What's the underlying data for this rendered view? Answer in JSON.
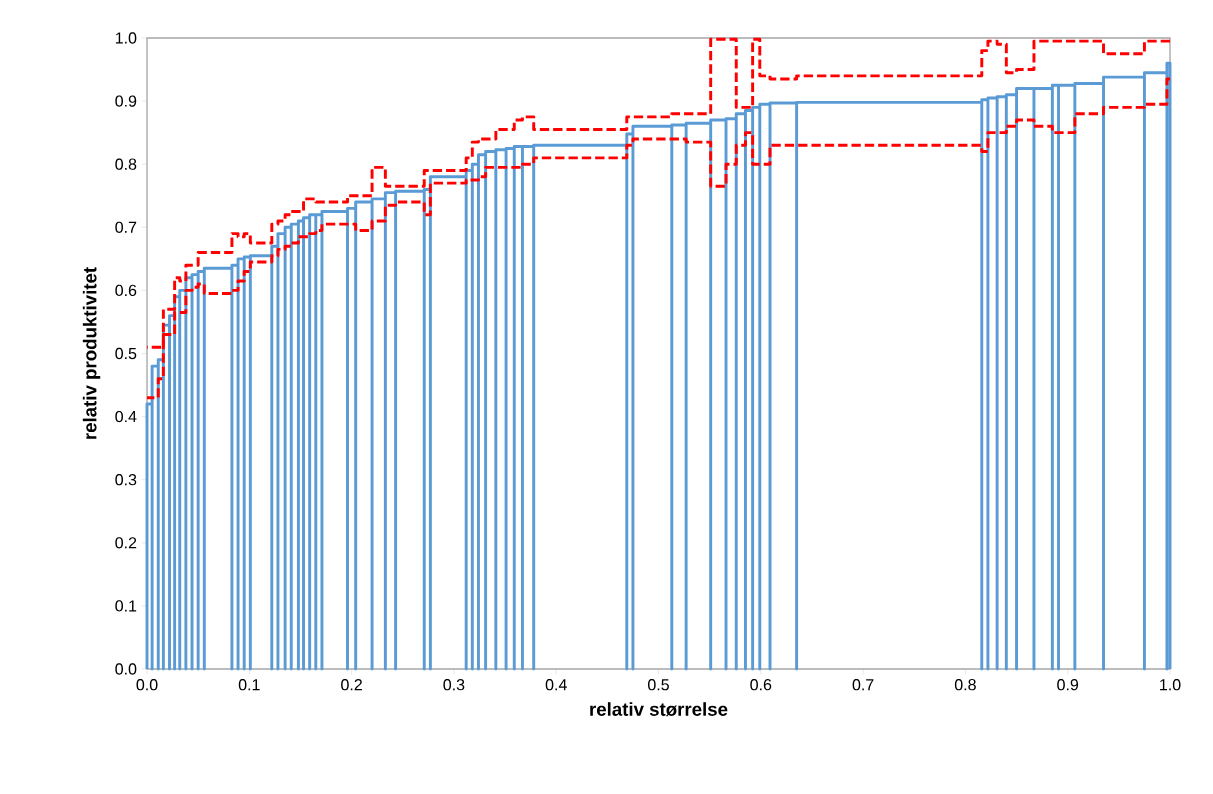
{
  "chart_data": {
    "type": "step",
    "xlabel": "relativ størrelse",
    "ylabel": "relativ produktivitet",
    "xlim": [
      0,
      1
    ],
    "ylim": [
      0,
      1
    ],
    "xticks": [
      {
        "value": 0,
        "label": "0.0"
      },
      {
        "value": 0.1,
        "label": "0.1"
      },
      {
        "value": 0.2,
        "label": "0.2"
      },
      {
        "value": 0.3,
        "label": "0.3"
      },
      {
        "value": 0.4,
        "label": "0.4"
      },
      {
        "value": 0.5,
        "label": "0.5"
      },
      {
        "value": 0.6,
        "label": "0.6"
      },
      {
        "value": 0.7,
        "label": "0.7"
      },
      {
        "value": 0.8,
        "label": "0.8"
      },
      {
        "value": 0.9,
        "label": "0.9"
      },
      {
        "value": 1,
        "label": "1.0"
      }
    ],
    "yticks": [
      {
        "value": 0,
        "label": "0.0"
      },
      {
        "value": 0.1,
        "label": "0.1"
      },
      {
        "value": 0.2,
        "label": "0.2"
      },
      {
        "value": 0.3,
        "label": "0.3"
      },
      {
        "value": 0.4,
        "label": "0.4"
      },
      {
        "value": 0.5,
        "label": "0.5"
      },
      {
        "value": 0.6,
        "label": "0.6"
      },
      {
        "value": 0.7,
        "label": "0.7"
      },
      {
        "value": 0.8,
        "label": "0.8"
      },
      {
        "value": 0.9,
        "label": "0.9"
      },
      {
        "value": 1,
        "label": "1.0"
      }
    ],
    "series": [
      {
        "line_style": "dashed",
        "color": "#ff0000",
        "x": [
          0,
          0.005,
          0.011,
          0.016,
          0.022,
          0.027,
          0.032,
          0.038,
          0.044,
          0.05,
          0.056,
          0.083,
          0.089,
          0.095,
          0.101,
          0.122,
          0.128,
          0.135,
          0.141,
          0.148,
          0.153,
          0.159,
          0.165,
          0.171,
          0.196,
          0.204,
          0.22,
          0.233,
          0.243,
          0.271,
          0.277,
          0.312,
          0.318,
          0.324,
          0.331,
          0.341,
          0.351,
          0.359,
          0.367,
          0.378,
          0.469,
          0.475,
          0.513,
          0.527,
          0.551,
          0.566,
          0.576,
          0.585,
          0.592,
          0.599,
          0.609,
          0.635,
          0.816,
          0.822,
          0.831,
          0.84,
          0.85,
          0.867,
          0.885,
          0.891,
          0.907,
          0.935,
          0.975,
          0.997
        ],
        "values": [
          0.51,
          0.51,
          0.51,
          0.57,
          0.57,
          0.62,
          0.615,
          0.64,
          0.64,
          0.66,
          0.66,
          0.69,
          0.685,
          0.69,
          0.675,
          0.705,
          0.71,
          0.72,
          0.725,
          0.725,
          0.745,
          0.745,
          0.74,
          0.74,
          0.75,
          0.75,
          0.795,
          0.765,
          0.765,
          0.79,
          0.79,
          0.81,
          0.835,
          0.84,
          0.84,
          0.855,
          0.855,
          0.87,
          0.875,
          0.855,
          0.875,
          0.875,
          0.88,
          0.88,
          0.998,
          0.998,
          0.89,
          0.89,
          0.998,
          0.94,
          0.935,
          0.94,
          0.98,
          0.995,
          0.99,
          0.945,
          0.95,
          0.995,
          0.995,
          0.995,
          0.995,
          0.975,
          0.995,
          0.995
        ]
      },
      {
        "line_style": "dashed",
        "color": "#ff0000",
        "x": [
          0,
          0.005,
          0.011,
          0.016,
          0.022,
          0.027,
          0.032,
          0.038,
          0.044,
          0.05,
          0.056,
          0.083,
          0.089,
          0.095,
          0.101,
          0.122,
          0.128,
          0.135,
          0.141,
          0.148,
          0.153,
          0.159,
          0.165,
          0.171,
          0.196,
          0.204,
          0.22,
          0.233,
          0.243,
          0.271,
          0.277,
          0.312,
          0.318,
          0.324,
          0.331,
          0.341,
          0.351,
          0.359,
          0.367,
          0.378,
          0.469,
          0.475,
          0.513,
          0.527,
          0.551,
          0.566,
          0.576,
          0.585,
          0.592,
          0.599,
          0.609,
          0.635,
          0.816,
          0.822,
          0.831,
          0.84,
          0.85,
          0.867,
          0.885,
          0.891,
          0.907,
          0.935,
          0.975,
          0.997
        ],
        "values": [
          0.43,
          0.43,
          0.46,
          0.53,
          0.53,
          0.565,
          0.565,
          0.6,
          0.605,
          0.61,
          0.595,
          0.6,
          0.615,
          0.63,
          0.645,
          0.655,
          0.665,
          0.67,
          0.675,
          0.685,
          0.685,
          0.69,
          0.695,
          0.705,
          0.705,
          0.695,
          0.71,
          0.735,
          0.74,
          0.72,
          0.77,
          0.775,
          0.775,
          0.78,
          0.795,
          0.795,
          0.795,
          0.795,
          0.8,
          0.81,
          0.83,
          0.84,
          0.84,
          0.835,
          0.765,
          0.8,
          0.83,
          0.85,
          0.8,
          0.8,
          0.83,
          0.83,
          0.82,
          0.85,
          0.85,
          0.86,
          0.87,
          0.86,
          0.85,
          0.85,
          0.88,
          0.89,
          0.895,
          0.935
        ]
      },
      {
        "type": "line",
        "color": "#5b9bd5",
        "x": [
          0,
          0,
          0.005,
          0.005,
          0.005,
          0.011,
          0.011,
          0.011,
          0.016,
          0.016,
          0.016,
          0.022,
          0.022,
          0.022,
          0.027,
          0.027,
          0.027,
          0.032,
          0.032,
          0.032,
          0.038,
          0.038,
          0.038,
          0.044,
          0.044,
          0.044,
          0.05,
          0.05,
          0.05,
          0.056,
          0.056,
          0.056,
          0.083,
          0.083,
          0.083,
          0.089,
          0.089,
          0.089,
          0.095,
          0.095,
          0.095,
          0.101,
          0.101,
          0.101,
          0.122,
          0.122,
          0.122,
          0.128,
          0.128,
          0.128,
          0.135,
          0.135,
          0.135,
          0.141,
          0.141,
          0.141,
          0.148,
          0.148,
          0.148,
          0.153,
          0.153,
          0.153,
          0.159,
          0.159,
          0.159,
          0.165,
          0.165,
          0.165,
          0.171,
          0.171,
          0.171,
          0.196,
          0.196,
          0.196,
          0.204,
          0.204,
          0.204,
          0.22,
          0.22,
          0.22,
          0.233,
          0.233,
          0.233,
          0.243,
          0.243,
          0.243,
          0.271,
          0.271,
          0.271,
          0.277,
          0.277,
          0.277,
          0.312,
          0.312,
          0.312,
          0.318,
          0.318,
          0.318,
          0.324,
          0.324,
          0.324,
          0.331,
          0.331,
          0.331,
          0.341,
          0.341,
          0.341,
          0.351,
          0.351,
          0.351,
          0.359,
          0.359,
          0.359,
          0.367,
          0.367,
          0.367,
          0.378,
          0.378,
          0.378,
          0.469,
          0.469,
          0.469,
          0.475,
          0.475,
          0.475,
          0.513,
          0.513,
          0.513,
          0.527,
          0.527,
          0.527,
          0.551,
          0.551,
          0.551,
          0.566,
          0.566,
          0.566,
          0.576,
          0.576,
          0.576,
          0.585,
          0.585,
          0.585,
          0.592,
          0.592,
          0.592,
          0.599,
          0.599,
          0.599,
          0.609,
          0.609,
          0.609,
          0.635,
          0.635,
          0.635,
          0.816,
          0.816,
          0.816,
          0.822,
          0.822,
          0.822,
          0.831,
          0.831,
          0.831,
          0.84,
          0.84,
          0.84,
          0.85,
          0.85,
          0.85,
          0.867,
          0.867,
          0.867,
          0.885,
          0.885,
          0.885,
          0.891,
          0.891,
          0.891,
          0.907,
          0.907,
          0.907,
          0.935,
          0.935,
          0.935,
          0.975,
          0.975,
          0.975,
          0.997,
          0.997,
          0.997,
          1,
          1
        ],
        "values": [
          0,
          0.42,
          0.42,
          0,
          0.48,
          0.48,
          0,
          0.49,
          0.49,
          0,
          0.545,
          0.545,
          0,
          0.56,
          0.56,
          0,
          0.59,
          0.59,
          0,
          0.6,
          0.6,
          0,
          0.62,
          0.62,
          0,
          0.625,
          0.625,
          0,
          0.63,
          0.63,
          0,
          0.635,
          0.635,
          0,
          0.64,
          0.64,
          0,
          0.65,
          0.65,
          0,
          0.653,
          0.653,
          0,
          0.655,
          0.655,
          0,
          0.67,
          0.67,
          0,
          0.69,
          0.69,
          0,
          0.7,
          0.7,
          0,
          0.705,
          0.705,
          0,
          0.71,
          0.71,
          0,
          0.715,
          0.715,
          0,
          0.72,
          0.72,
          0,
          0.72,
          0.72,
          0,
          0.725,
          0.725,
          0,
          0.73,
          0.73,
          0,
          0.74,
          0.74,
          0,
          0.745,
          0.745,
          0,
          0.755,
          0.755,
          0,
          0.757,
          0.757,
          0,
          0.76,
          0.76,
          0,
          0.78,
          0.78,
          0,
          0.79,
          0.79,
          0,
          0.8,
          0.8,
          0,
          0.815,
          0.815,
          0,
          0.82,
          0.82,
          0,
          0.823,
          0.823,
          0,
          0.825,
          0.825,
          0,
          0.828,
          0.828,
          0,
          0.828,
          0.828,
          0,
          0.83,
          0.83,
          0,
          0.848,
          0.848,
          0,
          0.86,
          0.86,
          0,
          0.862,
          0.862,
          0,
          0.865,
          0.865,
          0,
          0.87,
          0.87,
          0,
          0.872,
          0.872,
          0,
          0.88,
          0.88,
          0,
          0.885,
          0.885,
          0,
          0.89,
          0.89,
          0,
          0.895,
          0.895,
          0,
          0.897,
          0.897,
          0,
          0.898,
          0.898,
          0,
          0.902,
          0.902,
          0,
          0.905,
          0.905,
          0,
          0.907,
          0.907,
          0,
          0.91,
          0.91,
          0,
          0.92,
          0.92,
          0,
          0.92,
          0.92,
          0,
          0.925,
          0.925,
          0,
          0.925,
          0.925,
          0,
          0.928,
          0.928,
          0,
          0.938,
          0.938,
          0,
          0.945,
          0.945,
          0,
          0.96,
          0.96,
          0
        ]
      }
    ]
  }
}
